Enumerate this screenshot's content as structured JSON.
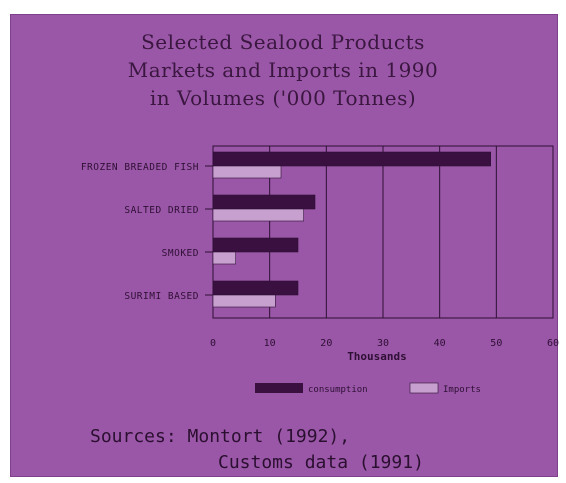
{
  "chart_data": {
    "type": "bar",
    "orientation": "horizontal",
    "title_lines": [
      "Selected Sealood Products",
      "Markets and Imports in 1990",
      "in Volumes ('000 Tonnes)"
    ],
    "categories": [
      "FROZEN BREADED FISH",
      "SALTED DRIED",
      "SMOKED",
      "SURIMI BASED"
    ],
    "series": [
      {
        "name": "consumption",
        "values": [
          49,
          18,
          15,
          15
        ]
      },
      {
        "name": "Imports",
        "values": [
          12,
          16,
          4,
          11
        ]
      }
    ],
    "xlabel": "Thousands",
    "xlim": [
      0,
      60
    ],
    "xticks": [
      0,
      10,
      20,
      30,
      40,
      50,
      60
    ],
    "grid": true,
    "legend": "bottom",
    "colors": {
      "background": "#9b57a7",
      "consumption": "#3a1040",
      "imports": "#c7a0cf",
      "gridline": "#2e0f35",
      "text": "#2e0f35"
    }
  },
  "sources": {
    "line1": "Sources: Montort (1992),",
    "line2": "Customs data (1991)"
  }
}
